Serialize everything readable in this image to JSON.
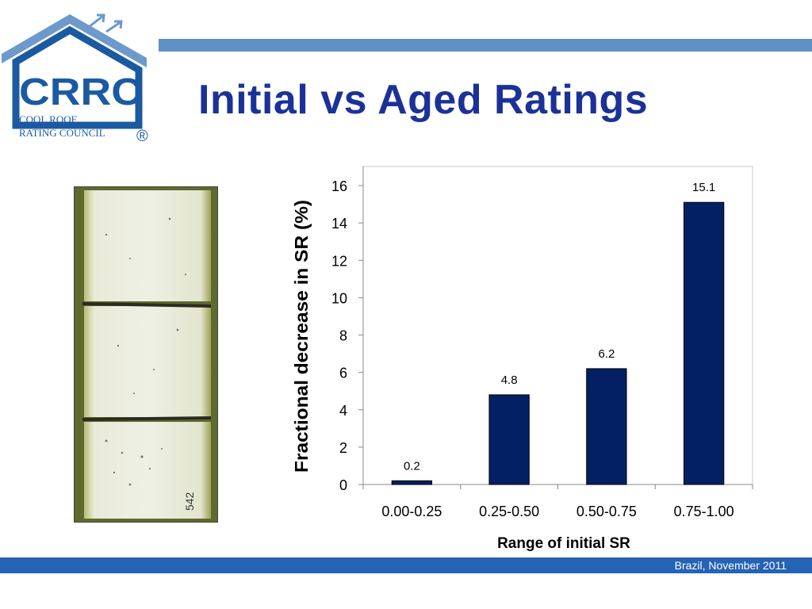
{
  "slide": {
    "title": "Initial vs Aged Ratings",
    "footer": "Brazil, November 2011"
  },
  "logo": {
    "acronym": "CRRC",
    "line1": "COOL ROOF",
    "line2": "RATING COUNCIL",
    "mark": "®"
  },
  "photo": {
    "annotation": "542"
  },
  "colors": {
    "bar": "#022063",
    "title": "#1c3198",
    "stripe_top": "#5f90c4",
    "stripe_bottom": "#2563b5",
    "logo_blue": "#1b5aa2"
  },
  "chart_data": {
    "type": "bar",
    "categories": [
      "0.00-0.25",
      "0.25-0.50",
      "0.50-0.75",
      "0.75-1.00"
    ],
    "values": [
      0.2,
      4.8,
      6.2,
      15.1
    ],
    "data_labels": [
      "0.2",
      "4.8",
      "6.2",
      "15.1"
    ],
    "xlabel": "Range of initial SR",
    "ylabel": "Fractional decrease in SR (%)",
    "ylim": [
      0,
      16
    ],
    "yticks": [
      "0",
      "2",
      "4",
      "6",
      "8",
      "10",
      "12",
      "14",
      "16"
    ],
    "grid": false,
    "legend": "none"
  }
}
